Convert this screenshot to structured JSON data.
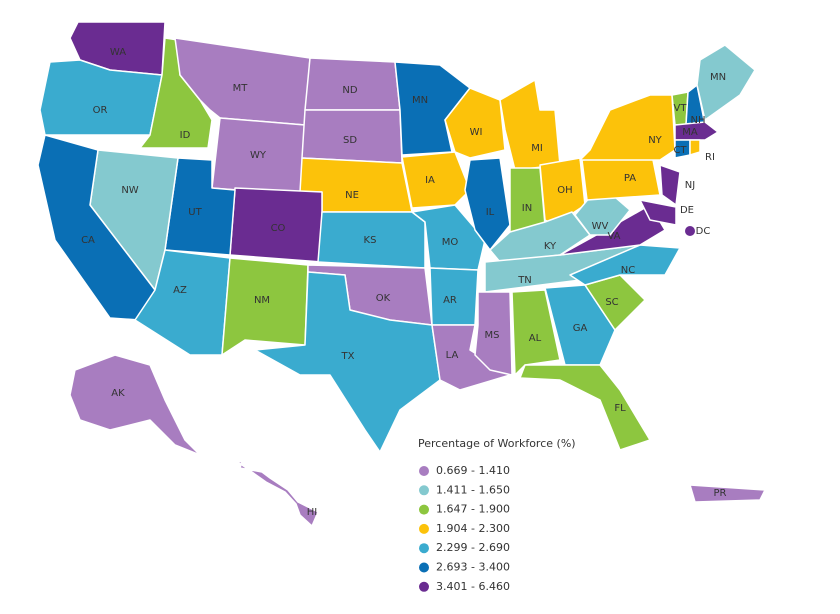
{
  "map": {
    "legend": {
      "title": "Percentage of Workforce (%)",
      "items": [
        {
          "label": "0.669 - 1.410",
          "color": "#a87dc0"
        },
        {
          "label": "1.411 - 1.650",
          "color": "#84c9cf"
        },
        {
          "label": "1.647 - 1.900",
          "color": "#8dc63f"
        },
        {
          "label": "1.904 - 2.300",
          "color": "#fcc20a"
        },
        {
          "label": "2.299 - 2.690",
          "color": "#3aabcf"
        },
        {
          "label": "2.693 - 3.400",
          "color": "#0a6fb5"
        },
        {
          "label": "3.401 - 6.460",
          "color": "#6a2c91"
        }
      ]
    },
    "regions": [
      {
        "label": "WA",
        "class": 6
      },
      {
        "label": "OR",
        "class": 4
      },
      {
        "label": "ID",
        "class": 2
      },
      {
        "label": "MT",
        "class": 0
      },
      {
        "label": "WY",
        "class": 0
      },
      {
        "label": "ND",
        "class": 0
      },
      {
        "label": "SD",
        "class": 0
      },
      {
        "label": "NE",
        "class": 3
      },
      {
        "label": "CO",
        "class": 6
      },
      {
        "label": "UT",
        "class": 5
      },
      {
        "label": "NW",
        "class": 1
      },
      {
        "label": "CA",
        "class": 5
      },
      {
        "label": "AZ",
        "class": 4
      },
      {
        "label": "NM",
        "class": 2
      },
      {
        "label": "KS",
        "class": 4
      },
      {
        "label": "OK",
        "class": 0
      },
      {
        "label": "TX",
        "class": 4
      },
      {
        "label": "MN",
        "class": 5
      },
      {
        "label": "IA",
        "class": 3
      },
      {
        "label": "MO",
        "class": 4
      },
      {
        "label": "AR",
        "class": 4
      },
      {
        "label": "LA",
        "class": 0
      },
      {
        "label": "WI",
        "class": 3
      },
      {
        "label": "IL",
        "class": 5
      },
      {
        "label": "MI",
        "class": 3
      },
      {
        "label": "IN",
        "class": 2
      },
      {
        "label": "OH",
        "class": 3
      },
      {
        "label": "KY",
        "class": 1
      },
      {
        "label": "TN",
        "class": 1
      },
      {
        "label": "MS",
        "class": 0
      },
      {
        "label": "AL",
        "class": 2
      },
      {
        "label": "GA",
        "class": 4
      },
      {
        "label": "FL",
        "class": 2
      },
      {
        "label": "SC",
        "class": 2
      },
      {
        "label": "NC",
        "class": 4
      },
      {
        "label": "VA",
        "class": 6
      },
      {
        "label": "WV",
        "class": 1
      },
      {
        "label": "PA",
        "class": 3
      },
      {
        "label": "NY",
        "class": 3
      },
      {
        "label": "NJ",
        "class": 6
      },
      {
        "label": "DE",
        "class": 6
      },
      {
        "label": "VT",
        "class": 2
      },
      {
        "label": "NH",
        "class": 5
      },
      {
        "label": "MN",
        "class": 1
      },
      {
        "label": "MA",
        "class": 6
      },
      {
        "label": "CT",
        "class": 5
      },
      {
        "label": "RI",
        "class": 3
      },
      {
        "label": "DC",
        "class": 6
      },
      {
        "label": "AK",
        "class": 0
      },
      {
        "label": "HI",
        "class": 0
      },
      {
        "label": "PR",
        "class": 0
      }
    ]
  }
}
